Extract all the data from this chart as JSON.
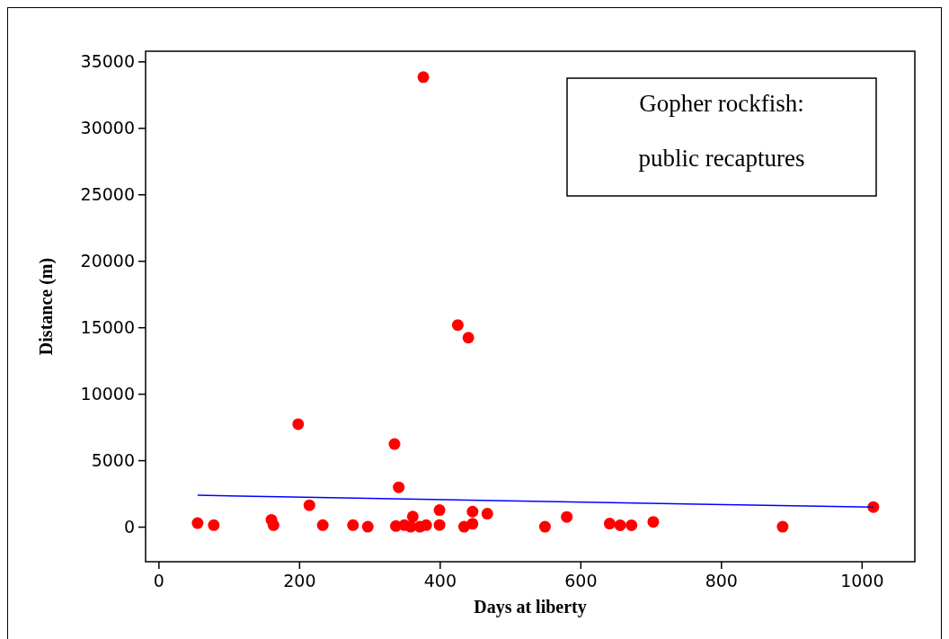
{
  "chart_data": {
    "type": "scatter",
    "xlabel": "Days at liberty",
    "ylabel": "Distance (m)",
    "annotations": [
      "Gopher rockfish:",
      "public recaptures"
    ],
    "xlim": [
      -19,
      1075
    ],
    "ylim": [
      -2600,
      35800
    ],
    "xticks": [
      0,
      200,
      400,
      600,
      800,
      1000
    ],
    "yticks": [
      0,
      5000,
      10000,
      15000,
      20000,
      25000,
      30000,
      35000
    ],
    "grid": false,
    "series": [
      {
        "color": "#ff0000",
        "marker": "circle",
        "x": [
          55,
          78,
          160,
          163,
          198,
          214,
          233,
          276,
          297,
          335,
          337,
          341,
          349,
          358,
          361,
          371,
          376,
          380,
          399,
          399,
          425,
          434,
          440,
          446,
          446,
          467,
          549,
          580,
          641,
          656,
          672,
          703,
          887,
          1016
        ],
        "values": [
          300,
          150,
          550,
          150,
          7750,
          1650,
          150,
          150,
          30,
          6250,
          80,
          3000,
          150,
          30,
          790,
          30,
          33850,
          150,
          1280,
          160,
          15200,
          30,
          14250,
          1170,
          250,
          1010,
          30,
          770,
          270,
          140,
          140,
          400,
          30,
          1510
        ]
      },
      {
        "type": "line",
        "color": "#0000ff",
        "line_style": "solid",
        "marker": "none",
        "x": [
          55,
          1016
        ],
        "values": [
          2400,
          1500
        ]
      }
    ]
  }
}
